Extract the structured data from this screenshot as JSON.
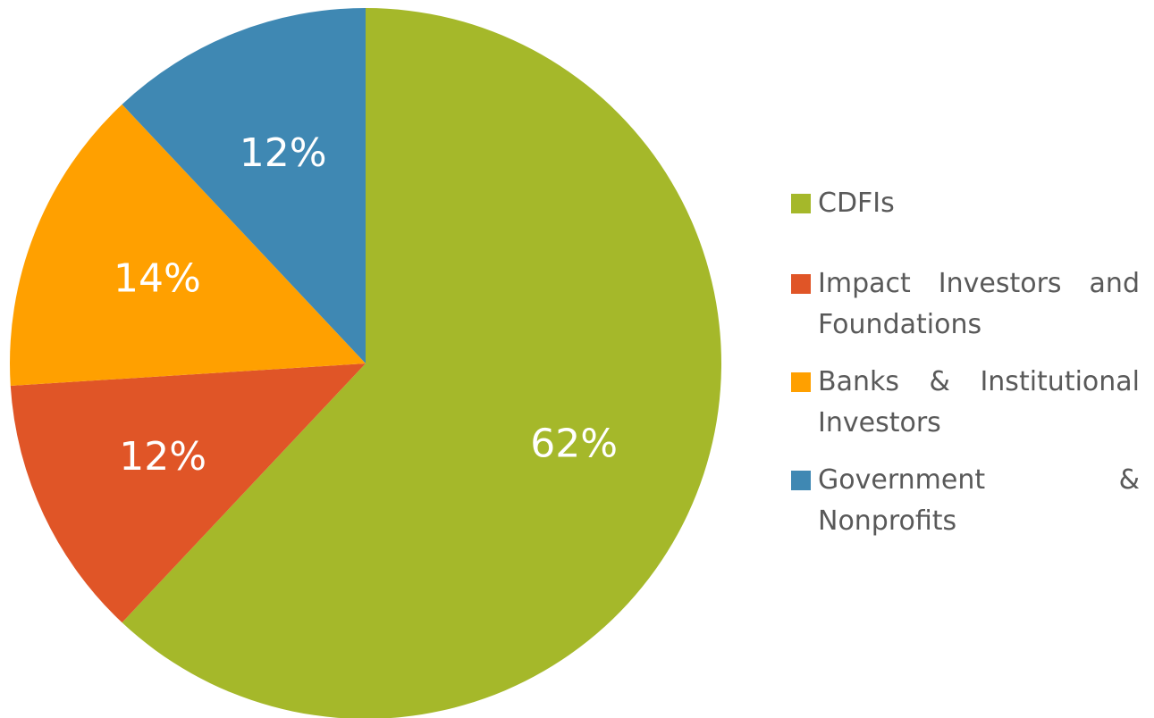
{
  "chart_data": {
    "type": "pie",
    "categories": [
      "CDFIs",
      "Impact Investors and Foundations",
      "Banks & Institutional Investors",
      "Government & Nonprofits"
    ],
    "values": [
      62,
      12,
      14,
      12
    ],
    "value_labels": [
      "62%",
      "12%",
      "14%",
      "12%"
    ],
    "colors": [
      "#a5b82a",
      "#e05527",
      "#ffa000",
      "#3f88b3"
    ],
    "legend": "right"
  }
}
